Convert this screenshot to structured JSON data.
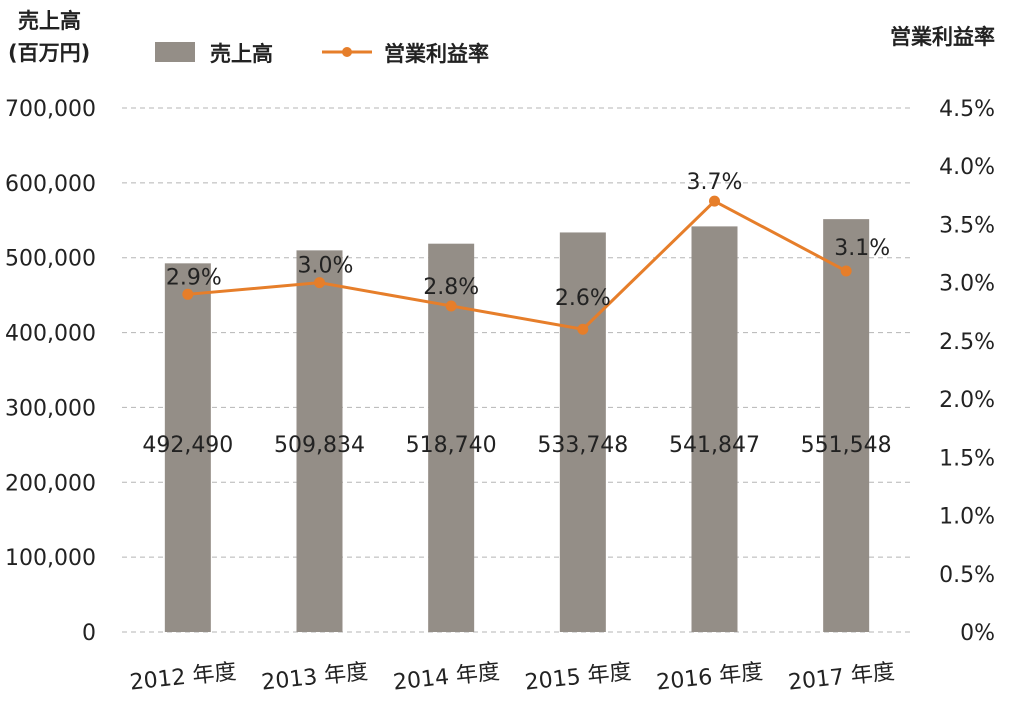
{
  "chart_data": {
    "type": "bar",
    "categories": [
      "2012 年度",
      "2013 年度",
      "2014 年度",
      "2015 年度",
      "2016 年度",
      "2017 年度"
    ],
    "series": [
      {
        "name": "売上高",
        "type": "bar",
        "axis": "left",
        "color": "#948e87",
        "values": [
          492490,
          509834,
          518740,
          533748,
          541847,
          551548
        ],
        "labels": [
          "492,490",
          "509,834",
          "518,740",
          "533,748",
          "541,847",
          "551,548"
        ]
      },
      {
        "name": "営業利益率",
        "type": "line",
        "axis": "right",
        "color": "#e67e2a",
        "values": [
          2.9,
          3.0,
          2.8,
          2.6,
          3.7,
          3.1
        ],
        "labels": [
          "2.9%",
          "3.0%",
          "2.8%",
          "2.6%",
          "3.7%",
          "3.1%"
        ]
      }
    ],
    "left_axis": {
      "title_line1": "売上高",
      "title_line2": "(百万円)",
      "ylim": [
        0,
        700000
      ],
      "ticks": [
        "0",
        "100,000",
        "200,000",
        "300,000",
        "400,000",
        "500,000",
        "600,000",
        "700,000"
      ]
    },
    "right_axis": {
      "title": "営業利益率",
      "ylim": [
        0,
        4.5
      ],
      "ticks": [
        "0%",
        "0.5%",
        "1.0%",
        "1.5%",
        "2.0%",
        "2.5%",
        "3.0%",
        "3.5%",
        "4.0%",
        "4.5%"
      ]
    },
    "legend": {
      "placement": "top",
      "items": [
        {
          "label": "売上高",
          "marker": "square"
        },
        {
          "label": "営業利益率",
          "marker": "line-dot"
        }
      ]
    },
    "grid": true
  }
}
